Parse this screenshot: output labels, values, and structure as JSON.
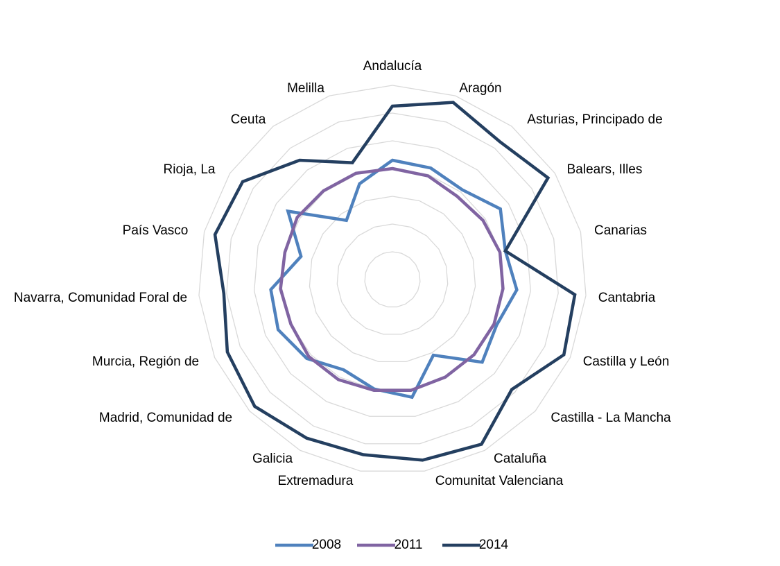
{
  "chart_data": {
    "type": "radar",
    "categories": [
      "Andalucía",
      "Aragón",
      "Asturias, Principado de",
      "Balears, Illes",
      "Canarias",
      "Cantabria",
      "Castilla y León",
      "Castilla - La Mancha",
      "Cataluña",
      "Comunitat Valenciana",
      "Extremadura",
      "Galicia",
      "Madrid, Comunidad de",
      "Murcia, Región de",
      "Navarra, Comunidad Foral de",
      "País Vasco",
      "Rioja, La",
      "Ceuta",
      "Melilla"
    ],
    "series": [
      {
        "name": "2008",
        "color": "#4f81bd",
        "values": [
          4.3,
          4.25,
          4.1,
          4.65,
          4.2,
          4.5,
          4.1,
          4.4,
          3.1,
          4.3,
          4.0,
          3.7,
          4.2,
          4.5,
          4.4,
          3.4,
          4.5,
          2.7,
          3.65
        ]
      },
      {
        "name": "2011",
        "color": "#8064a2",
        "values": [
          4.0,
          3.95,
          3.8,
          3.9,
          4.0,
          4.0,
          4.0,
          4.0,
          4.0,
          4.05,
          4.05,
          4.1,
          4.1,
          4.0,
          4.05,
          4.0,
          4.1,
          4.05,
          4.05
        ]
      },
      {
        "name": "2014",
        "color": "#243f60",
        "values": [
          6.25,
          6.75,
          6.3,
          6.7,
          4.2,
          6.6,
          6.75,
          5.85,
          6.75,
          6.6,
          6.4,
          6.5,
          6.75,
          6.5,
          6.1,
          6.6,
          6.45,
          5.45,
          4.45
        ]
      }
    ],
    "rlim": [
      0,
      7
    ],
    "rticks": [
      1,
      2,
      3,
      4,
      5,
      6,
      7
    ],
    "grid": true,
    "legend": "bottom"
  }
}
